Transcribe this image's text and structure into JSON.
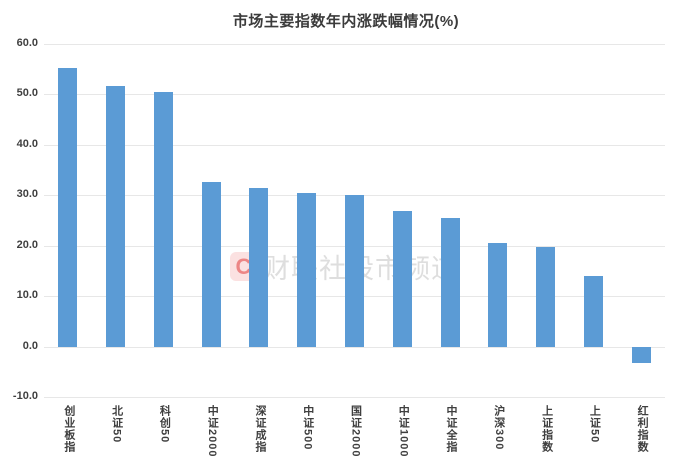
{
  "chart_data": {
    "type": "bar",
    "title": "市场主要指数年内涨跌幅情况(%)",
    "categories": [
      "创业板指",
      "北证50",
      "科创50",
      "中证2000",
      "深证成指",
      "中证500",
      "国证2000",
      "中证1000",
      "中证全指",
      "沪深300",
      "上证指数",
      "上证50",
      "红利指数"
    ],
    "values": [
      55.3,
      51.6,
      50.5,
      32.7,
      31.5,
      30.5,
      30.0,
      26.9,
      25.5,
      20.6,
      19.8,
      14.0,
      -3.3
    ],
    "xlabel": "",
    "ylabel": "",
    "ylim": [
      -10,
      60
    ],
    "yticks": [
      60,
      50,
      40,
      30,
      20,
      10,
      0,
      -10
    ],
    "ytick_labels": [
      "60.0",
      "50.0",
      "40.0",
      "30.0",
      "20.0",
      "10.0",
      "0.0",
      "-10.0"
    ],
    "grid": true,
    "legend": false,
    "bar_color": "#5B9BD5",
    "gridline_color": "#e7e7e7"
  },
  "watermark": {
    "logo_text": "C",
    "text": "财联社股市频道"
  }
}
